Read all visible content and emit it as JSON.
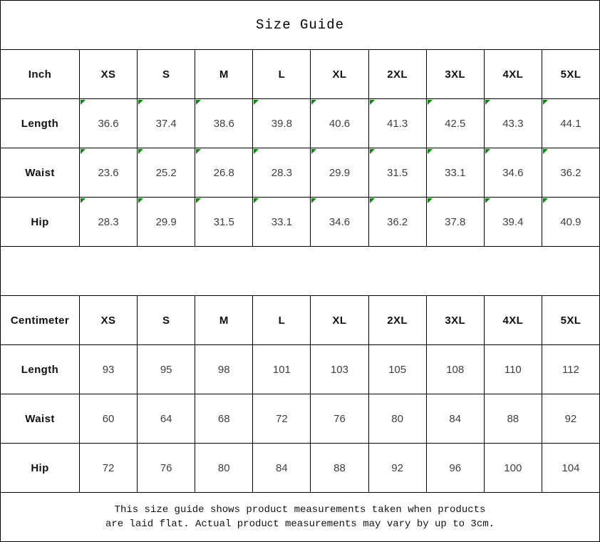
{
  "title": "Size Guide",
  "colors": {
    "marker_green": "#0a8a0a",
    "border": "#000000",
    "value_text": "#3f3f3f"
  },
  "sizes": [
    "XS",
    "S",
    "M",
    "L",
    "XL",
    "2XL",
    "3XL",
    "4XL",
    "5XL"
  ],
  "tables": [
    {
      "unit_label": "Inch",
      "show_corner_markers": true,
      "rows": [
        {
          "label": "Length",
          "values": [
            "36.6",
            "37.4",
            "38.6",
            "39.8",
            "40.6",
            "41.3",
            "42.5",
            "43.3",
            "44.1"
          ]
        },
        {
          "label": "Waist",
          "values": [
            "23.6",
            "25.2",
            "26.8",
            "28.3",
            "29.9",
            "31.5",
            "33.1",
            "34.6",
            "36.2"
          ]
        },
        {
          "label": "Hip",
          "values": [
            "28.3",
            "29.9",
            "31.5",
            "33.1",
            "34.6",
            "36.2",
            "37.8",
            "39.4",
            "40.9"
          ]
        }
      ]
    },
    {
      "unit_label": "Centimeter",
      "show_corner_markers": false,
      "rows": [
        {
          "label": "Length",
          "values": [
            "93",
            "95",
            "98",
            "101",
            "103",
            "105",
            "108",
            "110",
            "112"
          ]
        },
        {
          "label": "Waist",
          "values": [
            "60",
            "64",
            "68",
            "72",
            "76",
            "80",
            "84",
            "88",
            "92"
          ]
        },
        {
          "label": "Hip",
          "values": [
            "72",
            "76",
            "80",
            "84",
            "88",
            "92",
            "96",
            "100",
            "104"
          ]
        }
      ]
    }
  ],
  "footer": {
    "line1": "This size guide shows product measurements taken when products",
    "line2": "are laid flat. Actual product measurements may vary by up to 3cm."
  }
}
